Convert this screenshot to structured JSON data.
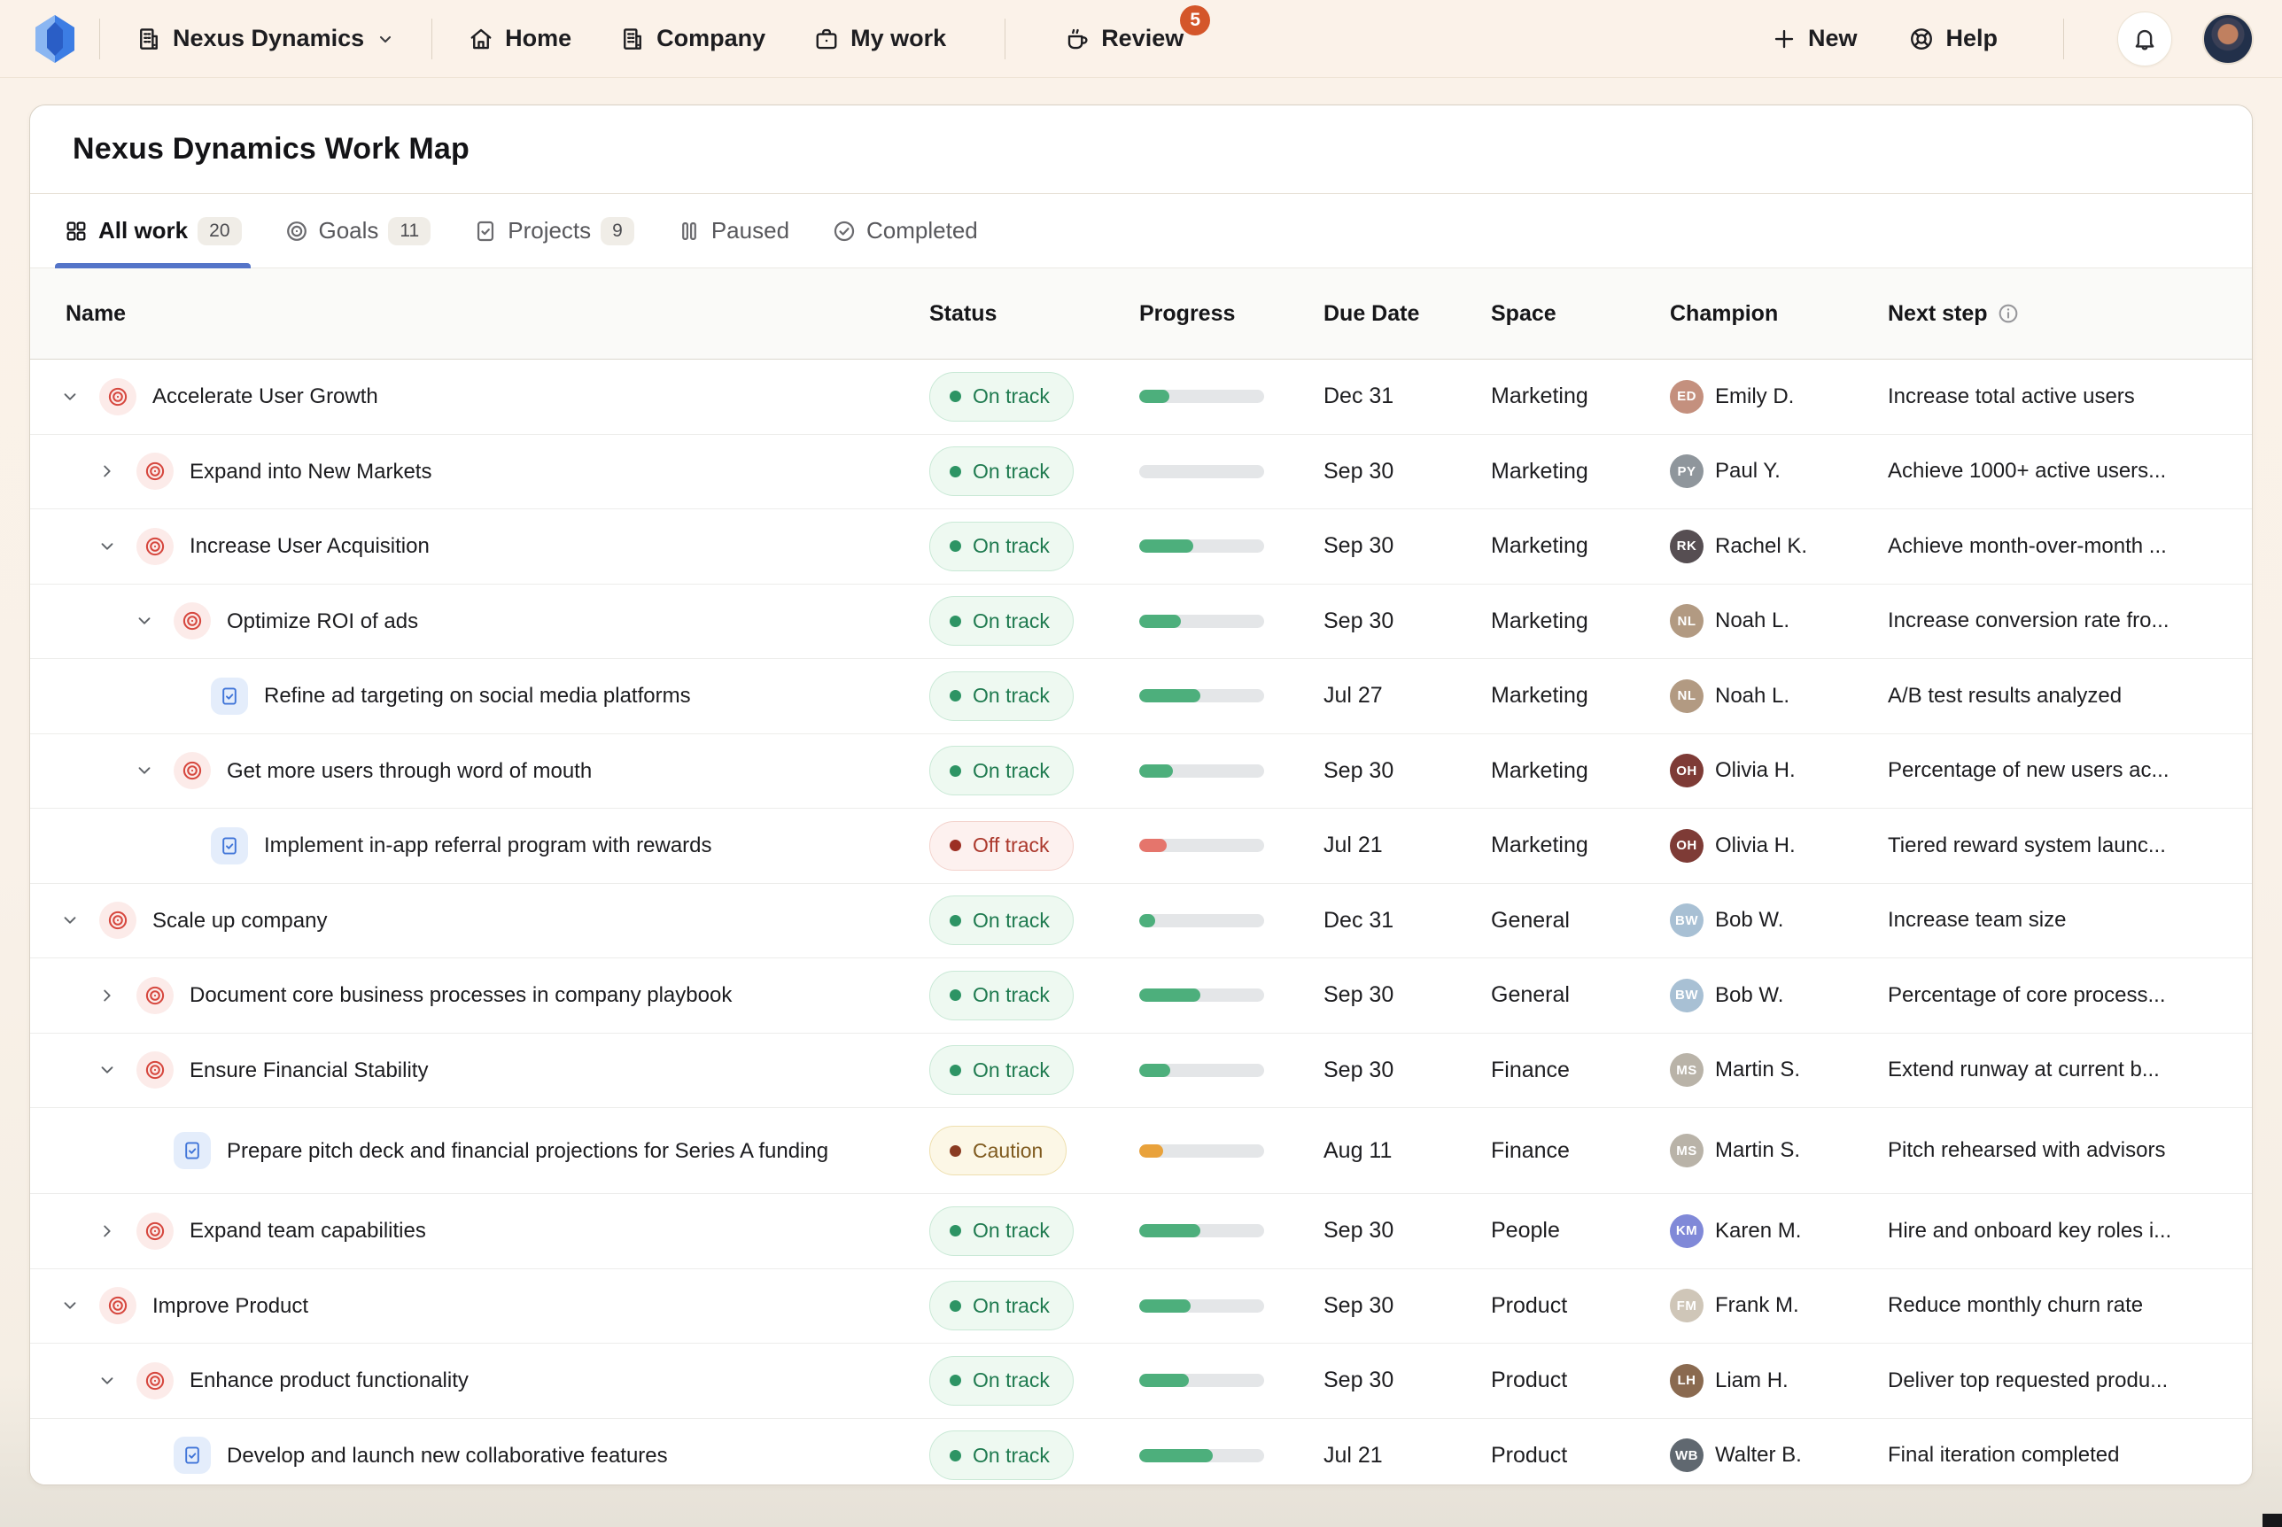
{
  "nav": {
    "workspace": {
      "label": "Nexus Dynamics",
      "icon": "building-icon"
    },
    "items": [
      {
        "label": "Home",
        "icon": "home-icon"
      },
      {
        "label": "Company",
        "icon": "building-icon"
      },
      {
        "label": "My work",
        "icon": "briefcase-icon"
      },
      {
        "label": "Review",
        "icon": "coffee-icon",
        "badge": "5",
        "divider_before": true
      }
    ],
    "actions": [
      {
        "label": "New",
        "icon": "plus-icon"
      },
      {
        "label": "Help",
        "icon": "lifebuoy-icon"
      }
    ],
    "review_badge_color": "#d4562a"
  },
  "page": {
    "title": "Nexus Dynamics Work Map"
  },
  "tabs": [
    {
      "label": "All work",
      "count": "20",
      "icon": "grid-icon",
      "active": true
    },
    {
      "label": "Goals",
      "count": "11",
      "icon": "target-icon",
      "active": false
    },
    {
      "label": "Projects",
      "count": "9",
      "icon": "project-icon",
      "active": false
    },
    {
      "label": "Paused",
      "count": null,
      "icon": "pause-icon",
      "active": false
    },
    {
      "label": "Completed",
      "count": null,
      "icon": "check-circle-icon",
      "active": false
    }
  ],
  "table": {
    "columns": [
      "Name",
      "Status",
      "Progress",
      "Due Date",
      "Space",
      "Champion",
      "Next step"
    ],
    "rows": [
      {
        "name": "Accelerate User Growth",
        "level": 0,
        "type": "goal",
        "expander": "down",
        "status": "On track",
        "status_key": "on_track",
        "progress": 24,
        "due": "Dec 31",
        "space": "Marketing",
        "champion": {
          "name": "Emily D.",
          "initials": "ED",
          "color": "#c4907e"
        },
        "next_step": "Increase total active users"
      },
      {
        "name": "Expand into New Markets",
        "level": 1,
        "type": "goal",
        "expander": "right",
        "status": "On track",
        "status_key": "on_track",
        "progress": 0,
        "due": "Sep 30",
        "space": "Marketing",
        "champion": {
          "name": "Paul Y.",
          "initials": "PY",
          "color": "#8f969c"
        },
        "next_step": "Achieve 1000+ active users..."
      },
      {
        "name": "Increase User Acquisition",
        "level": 1,
        "type": "goal",
        "expander": "down",
        "status": "On track",
        "status_key": "on_track",
        "progress": 43,
        "due": "Sep 30",
        "space": "Marketing",
        "champion": {
          "name": "Rachel K.",
          "initials": "RK",
          "color": "#564e52"
        },
        "next_step": "Achieve month-over-month ..."
      },
      {
        "name": "Optimize ROI of ads",
        "level": 2,
        "type": "goal",
        "expander": "down",
        "status": "On track",
        "status_key": "on_track",
        "progress": 33,
        "due": "Sep 30",
        "space": "Marketing",
        "champion": {
          "name": "Noah L.",
          "initials": "NL",
          "color": "#b29a82"
        },
        "next_step": "Increase conversion rate fro..."
      },
      {
        "name": "Refine ad targeting on social media platforms",
        "level": 3,
        "type": "project",
        "expander": "none",
        "status": "On track",
        "status_key": "on_track",
        "progress": 49,
        "due": "Jul 27",
        "space": "Marketing",
        "champion": {
          "name": "Noah L.",
          "initials": "NL",
          "color": "#b29a82"
        },
        "next_step": "A/B test results analyzed"
      },
      {
        "name": "Get more users through word of mouth",
        "level": 2,
        "type": "goal",
        "expander": "down",
        "status": "On track",
        "status_key": "on_track",
        "progress": 27,
        "due": "Sep 30",
        "space": "Marketing",
        "champion": {
          "name": "Olivia H.",
          "initials": "OH",
          "color": "#7e3b36"
        },
        "next_step": "Percentage of new users ac..."
      },
      {
        "name": "Implement in-app referral program with rewards",
        "level": 3,
        "type": "project",
        "expander": "none",
        "status": "Off track",
        "status_key": "off_track",
        "progress": 22,
        "due": "Jul 21",
        "space": "Marketing",
        "champion": {
          "name": "Olivia H.",
          "initials": "OH",
          "color": "#7e3b36"
        },
        "next_step": "Tiered reward system launc..."
      },
      {
        "name": "Scale up company",
        "level": 0,
        "type": "goal",
        "expander": "down",
        "status": "On track",
        "status_key": "on_track",
        "progress": 13,
        "due": "Dec 31",
        "space": "General",
        "champion": {
          "name": "Bob W.",
          "initials": "BW",
          "color": "#a8c0d4"
        },
        "next_step": "Increase team size"
      },
      {
        "name": "Document core business processes in company playbook",
        "level": 1,
        "type": "goal",
        "expander": "right",
        "status": "On track",
        "status_key": "on_track",
        "progress": 49,
        "due": "Sep 30",
        "space": "General",
        "champion": {
          "name": "Bob W.",
          "initials": "BW",
          "color": "#a8c0d4"
        },
        "next_step": "Percentage of core process..."
      },
      {
        "name": "Ensure Financial Stability",
        "level": 1,
        "type": "goal",
        "expander": "down",
        "status": "On track",
        "status_key": "on_track",
        "progress": 25,
        "due": "Sep 30",
        "space": "Finance",
        "champion": {
          "name": "Martin S.",
          "initials": "MS",
          "color": "#b9b3a8"
        },
        "next_step": "Extend runway at current b..."
      },
      {
        "name": "Prepare pitch deck and financial projections for Series A funding",
        "level": 2,
        "type": "project",
        "expander": "none",
        "status": "Caution",
        "status_key": "caution",
        "progress": 19,
        "due": "Aug 11",
        "space": "Finance",
        "champion": {
          "name": "Martin S.",
          "initials": "MS",
          "color": "#b9b3a8"
        },
        "next_step": "Pitch rehearsed with advisors",
        "tall": true
      },
      {
        "name": "Expand team capabilities",
        "level": 1,
        "type": "goal",
        "expander": "right",
        "status": "On track",
        "status_key": "on_track",
        "progress": 49,
        "due": "Sep 30",
        "space": "People",
        "champion": {
          "name": "Karen M.",
          "initials": "KM",
          "color": "#8089d8"
        },
        "next_step": "Hire and onboard key roles i..."
      },
      {
        "name": "Improve Product",
        "level": 0,
        "type": "goal",
        "expander": "down",
        "status": "On track",
        "status_key": "on_track",
        "progress": 41,
        "due": "Sep 30",
        "space": "Product",
        "champion": {
          "name": "Frank M.",
          "initials": "FM",
          "color": "#cfc6b8"
        },
        "next_step": "Reduce monthly churn rate"
      },
      {
        "name": "Enhance product functionality",
        "level": 1,
        "type": "goal",
        "expander": "down",
        "status": "On track",
        "status_key": "on_track",
        "progress": 40,
        "due": "Sep 30",
        "space": "Product",
        "champion": {
          "name": "Liam H.",
          "initials": "LH",
          "color": "#8a6a50"
        },
        "next_step": "Deliver top requested produ..."
      },
      {
        "name": "Develop and launch new collaborative features",
        "level": 2,
        "type": "project",
        "expander": "none",
        "status": "On track",
        "status_key": "on_track",
        "progress": 59,
        "due": "Jul 21",
        "space": "Product",
        "champion": {
          "name": "Walter B.",
          "initials": "WB",
          "color": "#606870"
        },
        "next_step": "Final iteration completed"
      }
    ]
  },
  "colors": {
    "accent_tab": "#5474c8",
    "on_track": {
      "bg": "#eef9f1",
      "border": "#c9e9d6",
      "text": "#1e7a4f",
      "dot": "#2d9464",
      "bar": "#4daf7c"
    },
    "off_track": {
      "bg": "#fdf1ef",
      "border": "#f3d3cd",
      "text": "#ab382c",
      "dot": "#9c2f23",
      "bar": "#e5756c"
    },
    "caution": {
      "bg": "#fcf7e6",
      "border": "#eedfae",
      "text": "#7f5a1e",
      "dot": "#8a3b22",
      "bar": "#e9a23b"
    },
    "goal_icon": "#d6473e",
    "project_icon": "#3f74d8",
    "nav_bg": "#fbf2e9"
  }
}
